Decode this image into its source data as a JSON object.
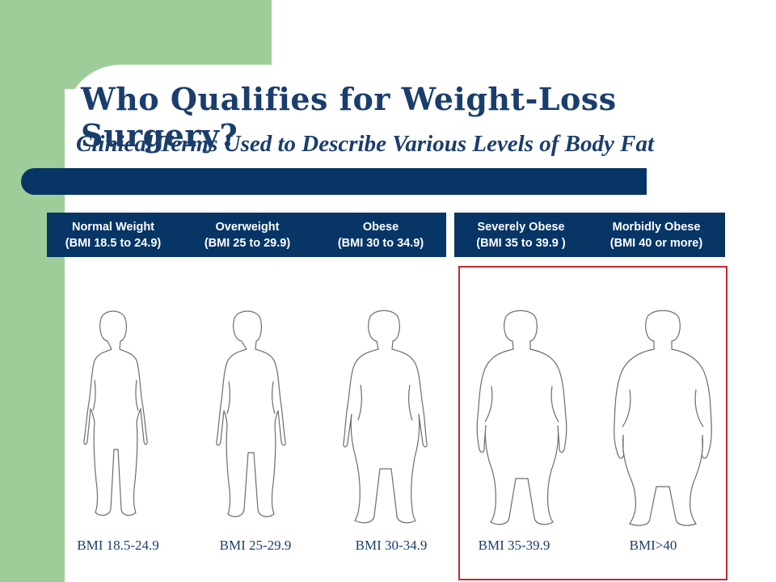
{
  "slide": {
    "title": "Who Qualifies for Weight-Loss Surgery?",
    "subtitle": "Clinical Terms Used to Describe Various Levels of Body Fat"
  },
  "colors": {
    "sidebar_green": "#9fcd99",
    "navy": "#063566",
    "title_blue": "#1a3e6c",
    "highlight_red": "#c8262e"
  },
  "categories": [
    {
      "name": "Normal Weight",
      "range": "(BMI 18.5 to 24.9)"
    },
    {
      "name": "Overweight",
      "range": "(BMI 25 to 29.9)"
    },
    {
      "name": "Obese",
      "range": "(BMI 30 to 34.9)"
    },
    {
      "name": "Severely Obese",
      "range": "(BMI 35 to 39.9 )"
    },
    {
      "name": "Morbidly Obese",
      "range": "(BMI 40 or more)"
    }
  ],
  "figures": [
    {
      "icon": "normal-weight-body-outline-icon",
      "label": "BMI 18.5-24.9"
    },
    {
      "icon": "overweight-body-outline-icon",
      "label": "BMI 25-29.9"
    },
    {
      "icon": "obese-body-outline-icon",
      "label": "BMI 30-34.9"
    },
    {
      "icon": "severely-obese-body-outline-icon",
      "label": "BMI 35-39.9"
    },
    {
      "icon": "morbidly-obese-body-outline-icon",
      "label": "BMI>40"
    }
  ]
}
